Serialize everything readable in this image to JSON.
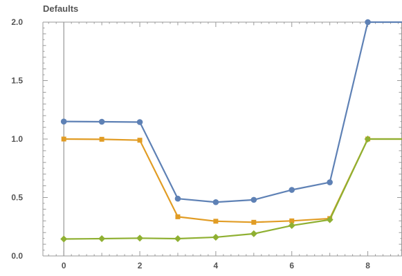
{
  "chart_data": {
    "type": "line",
    "title": "Defaults",
    "xlabel": "",
    "ylabel": "",
    "xlim": [
      -0.55,
      8.9
    ],
    "ylim": [
      0.0,
      2.0
    ],
    "x_ticks": [
      0,
      2,
      4,
      6,
      8
    ],
    "x_tick_labels": [
      "0",
      "2",
      "4",
      "6",
      "8"
    ],
    "y_ticks": [
      0.0,
      0.5,
      1.0,
      1.5,
      2.0
    ],
    "y_tick_labels": [
      "0.0",
      "0.5",
      "1.0",
      "1.5",
      "2.0"
    ],
    "grid": false,
    "legend": "none",
    "x": [
      0,
      1,
      2,
      3,
      4,
      5,
      6,
      7,
      8,
      9
    ],
    "series": [
      {
        "color": "#5e81b5",
        "marker": "circle",
        "values": [
          1.15,
          1.148,
          1.145,
          0.49,
          0.46,
          0.48,
          0.565,
          0.63,
          2.0,
          2.0
        ]
      },
      {
        "color": "#e19c24",
        "marker": "square",
        "values": [
          1.0,
          0.998,
          0.99,
          0.335,
          0.297,
          0.288,
          0.3,
          0.32,
          1.0,
          1.0
        ]
      },
      {
        "color": "#8fb032",
        "marker": "diamond",
        "values": [
          0.145,
          0.148,
          0.152,
          0.148,
          0.16,
          0.19,
          0.26,
          0.31,
          1.0,
          1.0
        ]
      }
    ]
  }
}
